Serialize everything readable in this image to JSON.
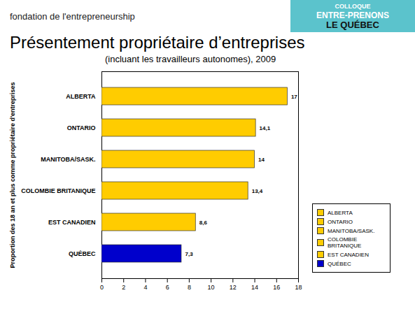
{
  "header": {
    "logo": "fondation de l'entrepreneurship",
    "event": [
      "COLLOQUE",
      "ENTRE-PRENONS",
      "LE QUÉBEC"
    ]
  },
  "chart_data": {
    "type": "bar",
    "orientation": "horizontal",
    "title": "Présentement propriétaire d’entreprises",
    "subtitle": "(incluant les travailleurs autonomes), 2009",
    "y_label": "Proportion des 18 an et plus comme propriétaire d'entreprises",
    "categories": [
      "ALBERTA",
      "ONTARIO",
      "MANITOBA/SASK.",
      "COLOMBIE BRITANIQUE",
      "EST CANADIEN",
      "QUÉBEC"
    ],
    "values": [
      17,
      14.1,
      14,
      13.4,
      8.6,
      7.3
    ],
    "value_labels": [
      "17",
      "14,1",
      "14",
      "13,4",
      "8,6",
      "7,3"
    ],
    "data_labels": true,
    "colors": [
      "#ffcc00",
      "#ffcc00",
      "#ffcc00",
      "#ffcc00",
      "#ffcc00",
      "#0000cc"
    ],
    "xlim": [
      0,
      18
    ],
    "xticks": [
      0,
      2,
      4,
      6,
      8,
      10,
      12,
      14,
      16,
      18
    ],
    "grid": false,
    "legend": "right"
  }
}
